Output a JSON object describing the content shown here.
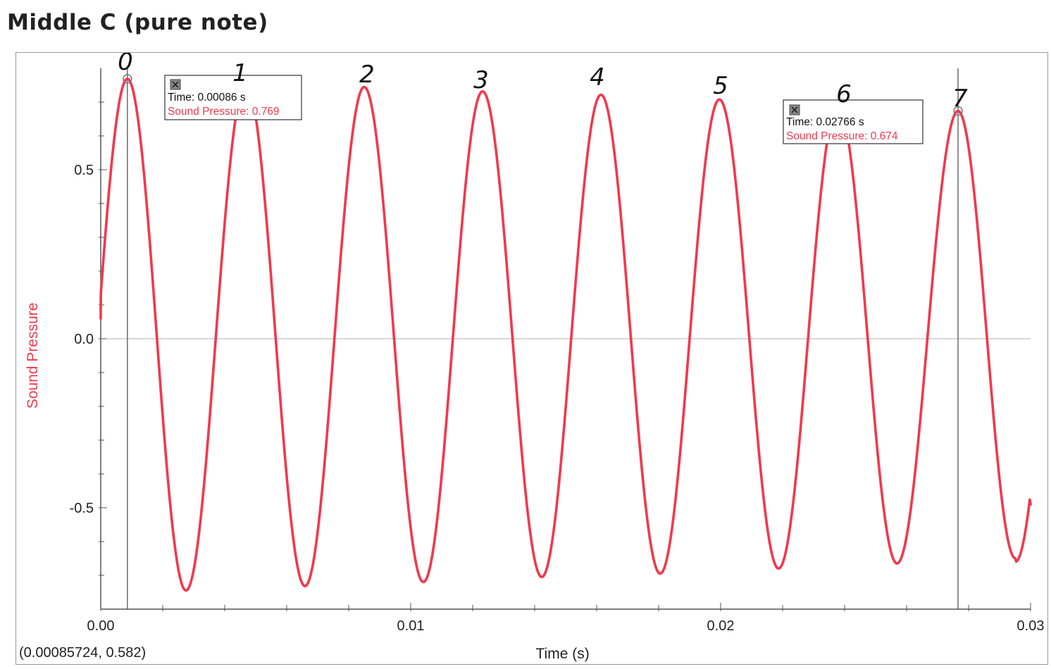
{
  "title": "Middle C (pure note)",
  "colors": {
    "series": "#f0394d",
    "ylabel": "#f0394d",
    "axis": "#555555",
    "grid": "#b0b0b0",
    "cursor": "#555555",
    "text": "#222222"
  },
  "chart_data": {
    "type": "line",
    "xlabel": "Time (s)",
    "ylabel": "Sound Pressure",
    "xlim": [
      0,
      0.03
    ],
    "ylim": [
      -0.8,
      0.8
    ],
    "xticks": [
      0,
      0.01,
      0.02,
      0.03
    ],
    "xtick_labels": [
      "0.00",
      "0.01",
      "0.02",
      "0.03"
    ],
    "yticks": [
      0.5,
      0.0,
      -0.5
    ],
    "ytick_labels": [
      "0.5",
      "0.0",
      "-0.5"
    ],
    "grid": false,
    "series": [
      {
        "name": "Sound Pressure",
        "start_value": 0.06,
        "end_value": -0.49,
        "peaks": [
          {
            "x": 0.00086,
            "y": 0.769
          },
          {
            "x": 0.00468,
            "y": 0.758
          },
          {
            "x": 0.0085,
            "y": 0.745
          },
          {
            "x": 0.01232,
            "y": 0.732
          },
          {
            "x": 0.01614,
            "y": 0.722
          },
          {
            "x": 0.01996,
            "y": 0.708
          },
          {
            "x": 0.02378,
            "y": 0.69
          },
          {
            "x": 0.02766,
            "y": 0.674
          }
        ],
        "troughs": [
          {
            "x": 0.00275,
            "y": -0.745
          },
          {
            "x": 0.00659,
            "y": -0.732
          },
          {
            "x": 0.01041,
            "y": -0.72
          },
          {
            "x": 0.01423,
            "y": -0.705
          },
          {
            "x": 0.01805,
            "y": -0.695
          },
          {
            "x": 0.02187,
            "y": -0.68
          },
          {
            "x": 0.02569,
            "y": -0.665
          },
          {
            "x": 0.02951,
            "y": -0.65
          }
        ]
      }
    ],
    "cursors": [
      {
        "x": 0.00086,
        "y": 0.769
      },
      {
        "x": 0.02766,
        "y": 0.674
      }
    ],
    "tooltips": [
      {
        "time_text": "Time: 0.00086 s",
        "value_text": "Sound Pressure: 0.769"
      },
      {
        "time_text": "Time: 0.02766 s",
        "value_text": "Sound Pressure: 0.674"
      }
    ],
    "cursor_readout": "(0.00085724, 0.582)",
    "peak_annotations": [
      "0",
      "1",
      "2",
      "3",
      "4",
      "5",
      "6",
      "7"
    ]
  }
}
